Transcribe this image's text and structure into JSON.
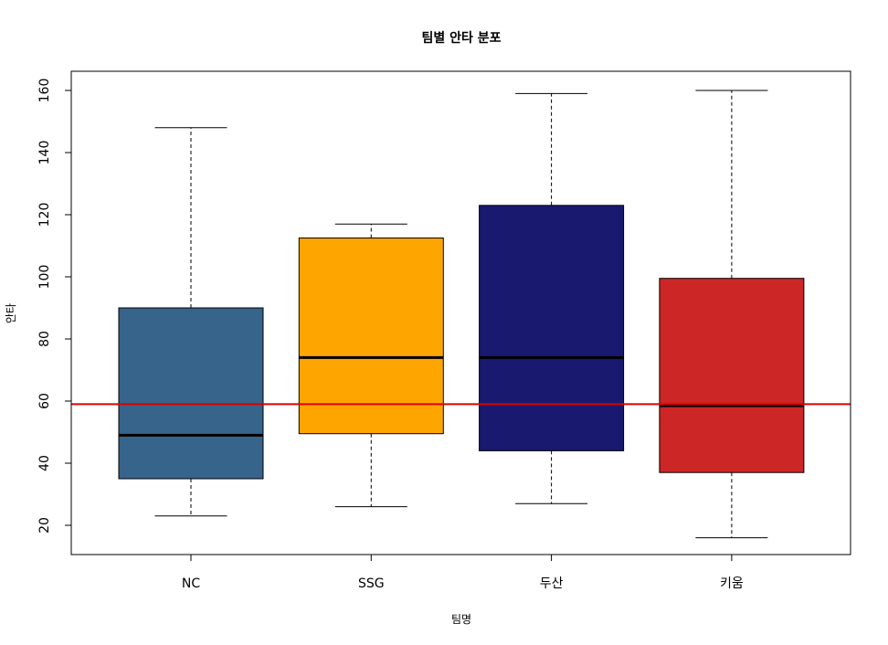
{
  "chart_data": {
    "type": "boxplot",
    "title": "팀별 안타 분포",
    "xlabel": "팀명",
    "ylabel": "안타",
    "ylim": [
      10,
      165
    ],
    "yticks": [
      20,
      40,
      60,
      80,
      100,
      120,
      140,
      160
    ],
    "categories": [
      "NC",
      "SSG",
      "두산",
      "키움"
    ],
    "boxes": [
      {
        "name": "NC",
        "color": "#36648B",
        "min": 23,
        "q1": 35,
        "median": 49,
        "q3": 90,
        "max": 148
      },
      {
        "name": "SSG",
        "color": "#FFA500",
        "min": 26,
        "q1": 49.5,
        "median": 74,
        "q3": 112.5,
        "max": 117
      },
      {
        "name": "두산",
        "color": "#191970",
        "min": 27,
        "q1": 44,
        "median": 74,
        "q3": 123,
        "max": 159
      },
      {
        "name": "키움",
        "color": "#CD2626",
        "min": 16,
        "q1": 37,
        "median": 58.5,
        "q3": 99.5,
        "max": 160
      }
    ],
    "reference_line": {
      "y": 59,
      "color": "#DD0000"
    }
  }
}
